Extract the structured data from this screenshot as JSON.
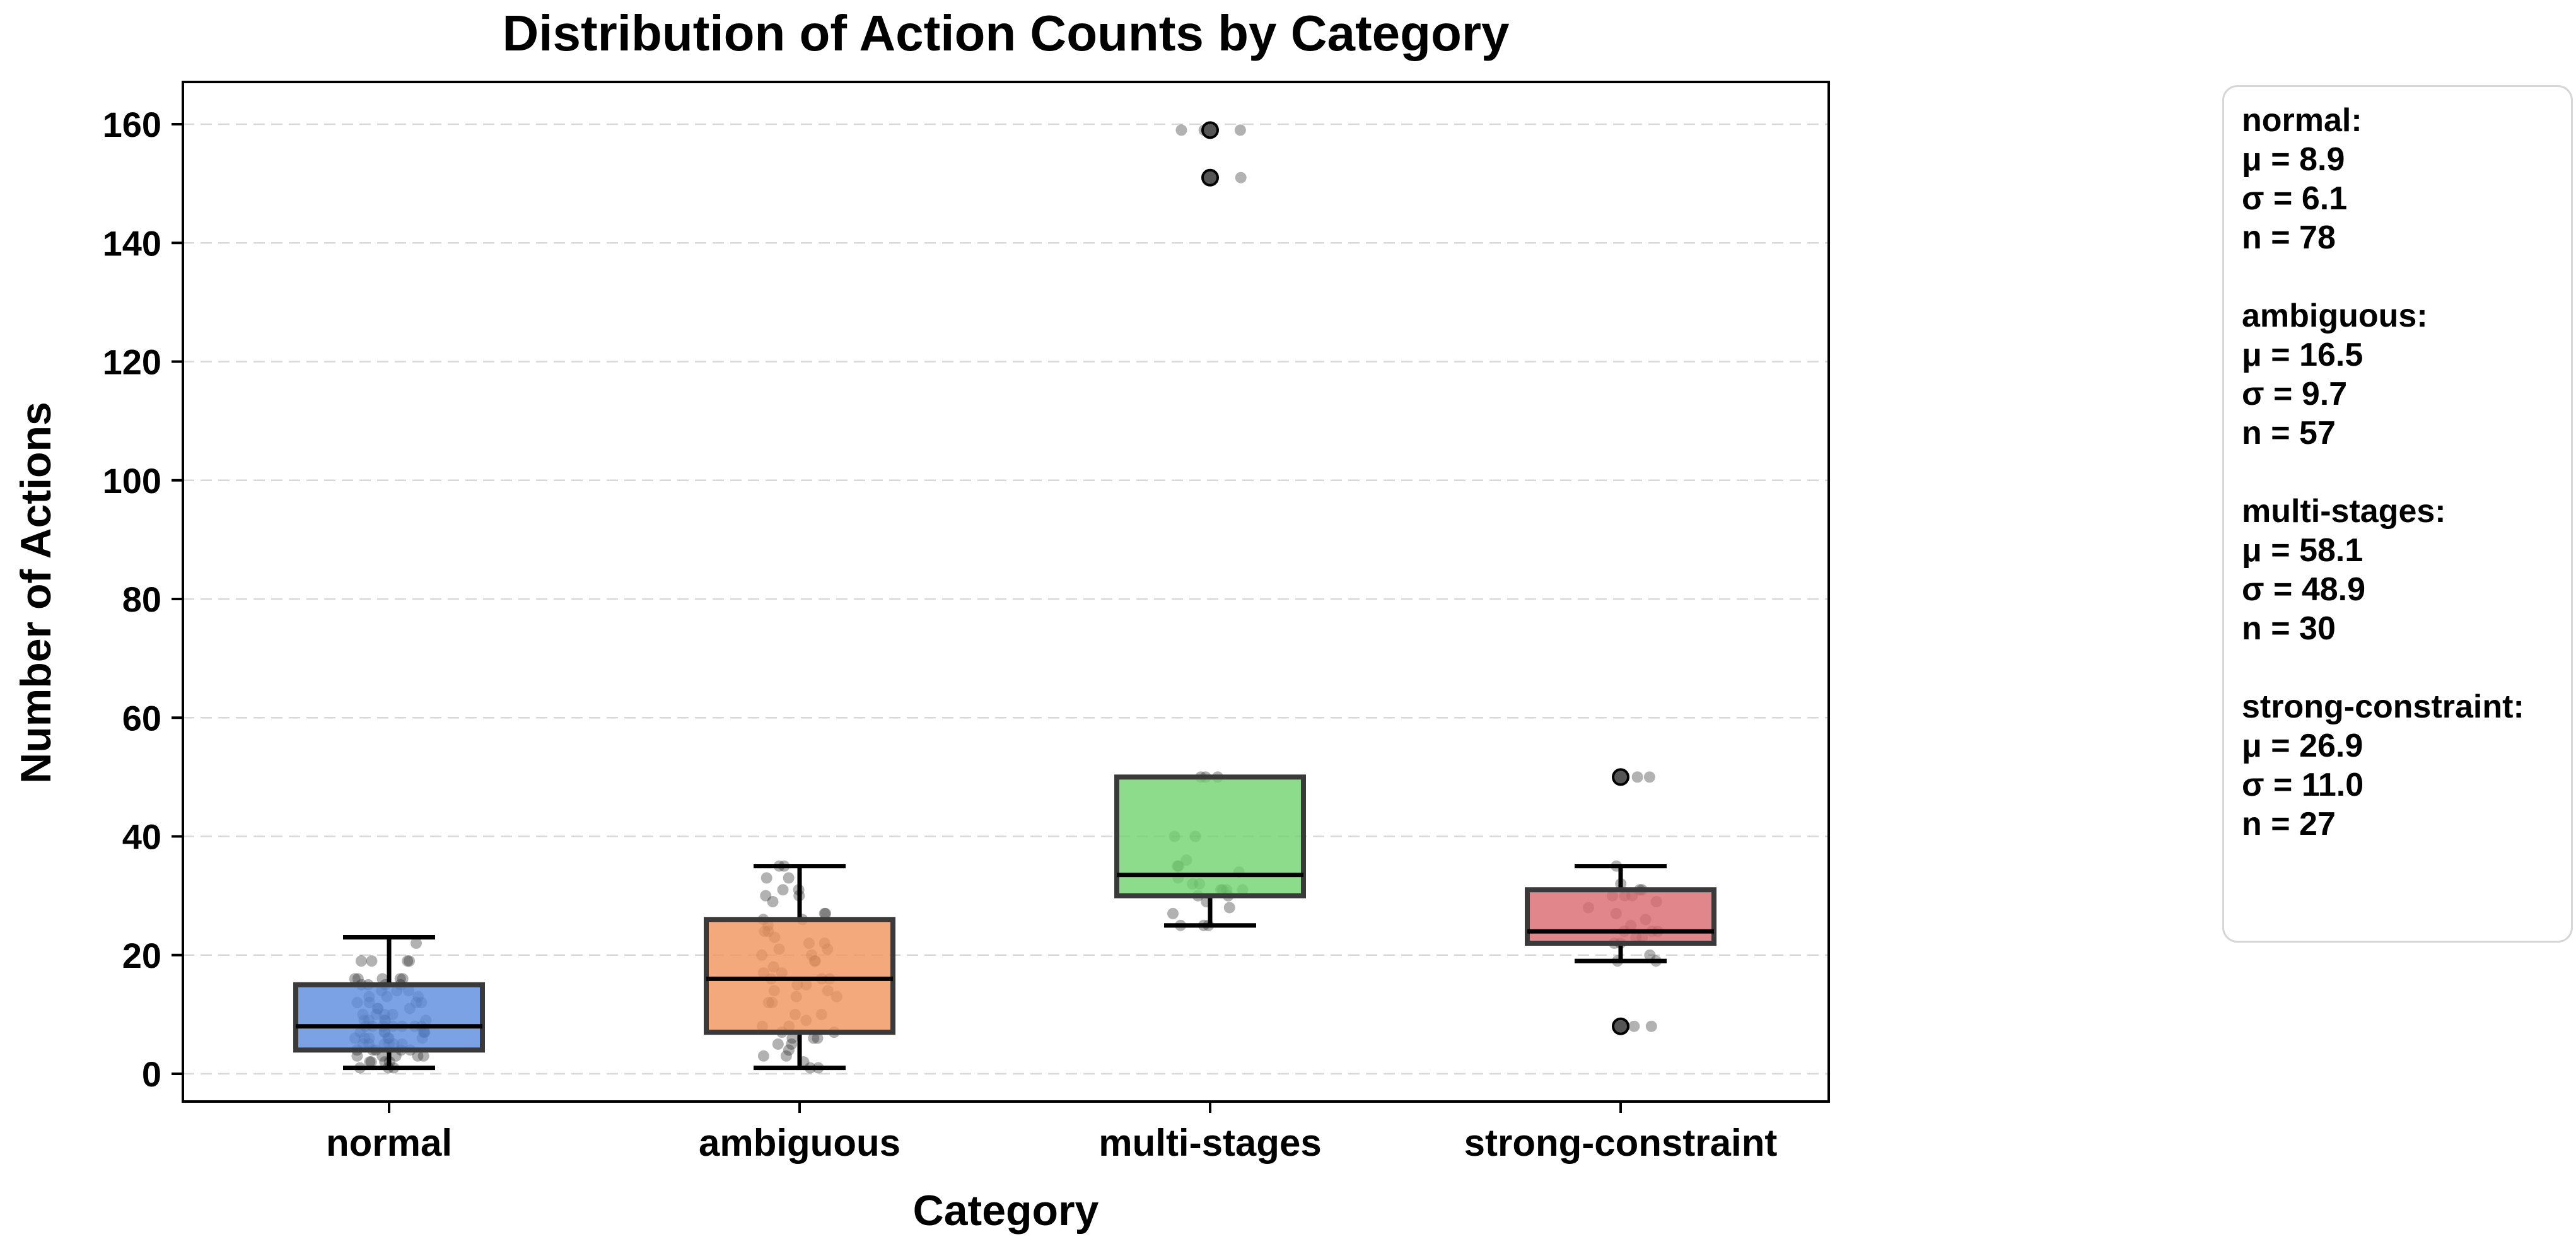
{
  "chart_data": {
    "type": "box",
    "title": "Distribution of Action Counts by Category",
    "xlabel": "Category",
    "ylabel": "Number of Actions",
    "ylim": [
      -5,
      167
    ],
    "yticks": [
      0,
      20,
      40,
      60,
      80,
      100,
      120,
      140,
      160
    ],
    "grid": "horizontal dashed",
    "categories": [
      "normal",
      "ambiguous",
      "multi-stages",
      "strong-constraint"
    ],
    "colors": [
      "#5b8be0",
      "#f0935a",
      "#6fd36f",
      "#d9686e"
    ],
    "boxes": [
      {
        "category": "normal",
        "whisker_low": 1,
        "q1": 4,
        "median": 8,
        "q3": 15,
        "whisker_high": 23,
        "outliers": []
      },
      {
        "category": "ambiguous",
        "whisker_low": 1,
        "q1": 7,
        "median": 16,
        "q3": 26,
        "whisker_high": 35,
        "outliers": []
      },
      {
        "category": "multi-stages",
        "whisker_low": 25,
        "q1": 30,
        "median": 33.5,
        "q3": 50,
        "whisker_high": 50,
        "outliers": [
          151,
          159
        ]
      },
      {
        "category": "strong-constraint",
        "whisker_low": 19,
        "q1": 22,
        "median": 24,
        "q3": 31,
        "whisker_high": 35,
        "outliers": [
          8,
          50
        ]
      }
    ],
    "points": [
      {
        "category": "normal",
        "values": [
          1,
          1,
          1,
          2,
          2,
          2,
          3,
          3,
          3,
          3,
          4,
          4,
          4,
          4,
          5,
          5,
          5,
          5,
          5,
          6,
          6,
          6,
          6,
          7,
          7,
          7,
          7,
          8,
          8,
          8,
          8,
          8,
          9,
          9,
          9,
          9,
          10,
          10,
          10,
          11,
          11,
          11,
          12,
          12,
          12,
          13,
          13,
          13,
          14,
          14,
          14,
          15,
          15,
          15,
          15,
          16,
          16,
          16,
          16,
          16,
          3,
          4,
          5,
          6,
          7,
          8,
          9,
          10,
          2,
          6,
          19,
          19,
          19,
          19,
          22,
          7,
          8,
          12
        ]
      },
      {
        "category": "ambiguous",
        "values": [
          1,
          1,
          2,
          3,
          3,
          4,
          5,
          5,
          6,
          6,
          7,
          7,
          8,
          8,
          9,
          10,
          12,
          13,
          13,
          14,
          15,
          15,
          16,
          16,
          16,
          17,
          17,
          18,
          19,
          19,
          20,
          21,
          21,
          22,
          23,
          24,
          25,
          26,
          26,
          27,
          27,
          29,
          30,
          30,
          31,
          31,
          33,
          33,
          35,
          35,
          10,
          12,
          14,
          20,
          22,
          24,
          6
        ]
      },
      {
        "category": "multi-stages",
        "values": [
          25,
          25,
          25,
          27,
          28,
          29,
          30,
          30,
          31,
          31,
          31,
          32,
          32,
          33,
          34,
          35,
          35,
          36,
          40,
          40,
          50,
          50,
          50,
          151,
          151,
          151,
          159,
          159,
          159,
          31
        ]
      },
      {
        "category": "strong-constraint",
        "values": [
          8,
          8,
          8,
          19,
          19,
          20,
          22,
          22,
          23,
          23,
          24,
          24,
          24,
          25,
          26,
          27,
          28,
          29,
          30,
          30,
          30,
          31,
          31,
          32,
          35,
          50,
          50
        ]
      }
    ],
    "annotation": {
      "stats": [
        {
          "label": "normal:",
          "mu": "μ = 8.9",
          "sigma": "σ = 6.1",
          "n": "n = 78"
        },
        {
          "label": "ambiguous:",
          "mu": "μ = 16.5",
          "sigma": "σ = 9.7",
          "n": "n = 57"
        },
        {
          "label": "multi-stages:",
          "mu": "μ = 58.1",
          "sigma": "σ = 48.9",
          "n": "n = 30"
        },
        {
          "label": "strong-constraint:",
          "mu": "μ = 26.9",
          "sigma": "σ = 11.0",
          "n": "n = 27"
        }
      ]
    }
  }
}
